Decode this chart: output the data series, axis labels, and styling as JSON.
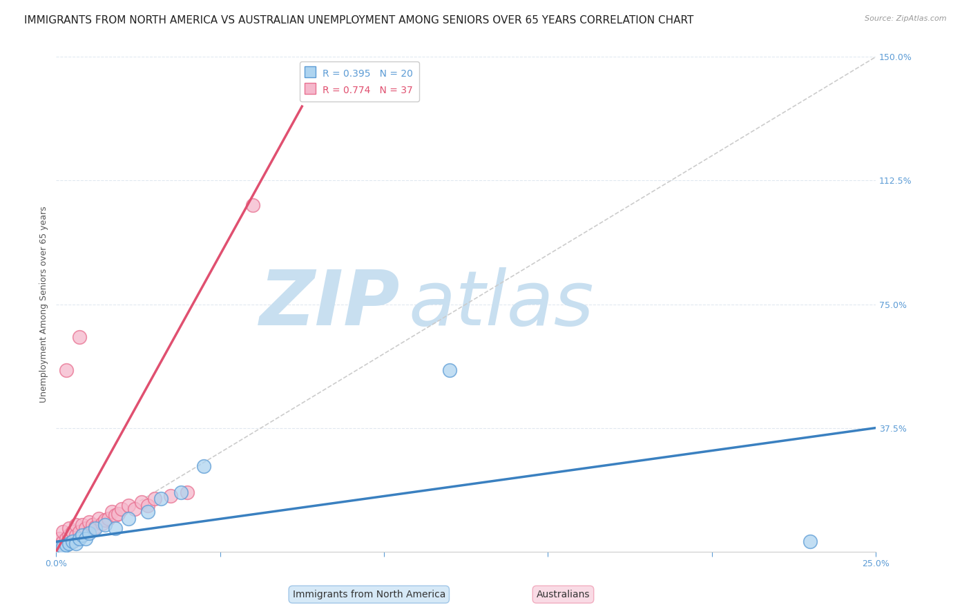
{
  "title": "IMMIGRANTS FROM NORTH AMERICA VS AUSTRALIAN UNEMPLOYMENT AMONG SENIORS OVER 65 YEARS CORRELATION CHART",
  "source": "Source: ZipAtlas.com",
  "ylabel": "Unemployment Among Seniors over 65 years",
  "xlim": [
    0.0,
    0.25
  ],
  "ylim": [
    0.0,
    1.5
  ],
  "xticks": [
    0.0,
    0.05,
    0.1,
    0.15,
    0.2,
    0.25
  ],
  "yticks_right": [
    0.0,
    0.375,
    0.75,
    1.125,
    1.5
  ],
  "ytick_labels_right": [
    "",
    "37.5%",
    "75.0%",
    "112.5%",
    "150.0%"
  ],
  "blue_R": 0.395,
  "blue_N": 20,
  "pink_R": 0.774,
  "pink_N": 37,
  "blue_color": "#aed4f0",
  "pink_color": "#f5b8cc",
  "blue_edge_color": "#5b9bd5",
  "pink_edge_color": "#e87090",
  "blue_line_color": "#3a80c0",
  "pink_line_color": "#e05070",
  "ref_line_color": "#cccccc",
  "legend_blue_label": "Immigrants from North America",
  "legend_pink_label": "Australians",
  "blue_scatter_x": [
    0.001,
    0.002,
    0.003,
    0.004,
    0.005,
    0.006,
    0.007,
    0.008,
    0.009,
    0.01,
    0.012,
    0.015,
    0.018,
    0.022,
    0.028,
    0.032,
    0.038,
    0.045,
    0.12,
    0.23
  ],
  "blue_scatter_y": [
    0.01,
    0.015,
    0.02,
    0.025,
    0.03,
    0.025,
    0.04,
    0.05,
    0.04,
    0.055,
    0.07,
    0.08,
    0.07,
    0.1,
    0.12,
    0.16,
    0.18,
    0.26,
    0.55,
    0.03
  ],
  "pink_scatter_x": [
    0.001,
    0.001,
    0.002,
    0.002,
    0.003,
    0.003,
    0.004,
    0.004,
    0.005,
    0.005,
    0.006,
    0.006,
    0.007,
    0.007,
    0.008,
    0.008,
    0.009,
    0.01,
    0.01,
    0.011,
    0.012,
    0.013,
    0.014,
    0.015,
    0.016,
    0.017,
    0.018,
    0.019,
    0.02,
    0.022,
    0.024,
    0.026,
    0.028,
    0.03,
    0.035,
    0.04,
    0.06
  ],
  "pink_scatter_y": [
    0.02,
    0.04,
    0.03,
    0.06,
    0.04,
    0.55,
    0.05,
    0.07,
    0.03,
    0.06,
    0.05,
    0.08,
    0.06,
    0.65,
    0.05,
    0.08,
    0.07,
    0.06,
    0.09,
    0.08,
    0.075,
    0.1,
    0.085,
    0.095,
    0.1,
    0.12,
    0.11,
    0.115,
    0.13,
    0.14,
    0.13,
    0.15,
    0.14,
    0.16,
    0.17,
    0.18,
    1.05
  ],
  "blue_trend_x": [
    0.0,
    0.25
  ],
  "blue_trend_y": [
    0.03,
    0.375
  ],
  "pink_trend_x": [
    0.0,
    0.075
  ],
  "pink_trend_y": [
    0.0,
    1.35
  ],
  "ref_line_x": [
    0.0,
    0.25
  ],
  "ref_line_y": [
    0.0,
    1.5
  ],
  "background_color": "#ffffff",
  "grid_color": "#e0e8f0",
  "title_fontsize": 11,
  "axis_label_fontsize": 9,
  "tick_fontsize": 9,
  "legend_fontsize": 10,
  "watermark_zip_color": "#c8dff0",
  "watermark_atlas_color": "#c8dff0",
  "watermark_fontsize": 80
}
